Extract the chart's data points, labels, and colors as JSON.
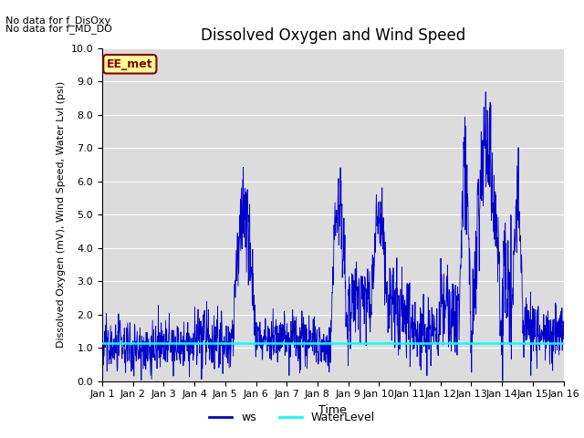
{
  "title": "Dissolved Oxygen and Wind Speed",
  "ylabel": "Dissolved Oxygen (mV), Wind Speed, Water Lvl (psi)",
  "xlabel": "Time",
  "ylim": [
    0.0,
    10.0
  ],
  "yticks": [
    0.0,
    1.0,
    2.0,
    3.0,
    4.0,
    5.0,
    6.0,
    7.0,
    8.0,
    9.0,
    10.0
  ],
  "water_level": 1.15,
  "ws_color": "#0000CC",
  "water_color": "cyan",
  "bg_color": "#DCDCDC",
  "annotation1": "No data for f_DisOxy",
  "annotation2": "No data for f_MD_DO",
  "station_label": "EE_met",
  "station_box_color": "#FFFF99",
  "station_box_edge": "#8B0000",
  "n_days": 15,
  "pts_per_day": 96,
  "x_tick_labels": [
    "Jan 1",
    "Jan 2",
    "Jan 3",
    "Jan 4",
    "Jan 5",
    "Jan 6",
    "Jan 7",
    "Jan 8",
    "Jan 9",
    "Jan 10",
    "Jan 11",
    "Jan 12",
    "Jan 13",
    "Jan 14",
    "Jan 15",
    "Jan 16"
  ],
  "seed": 42,
  "title_fontsize": 12,
  "ylabel_fontsize": 8,
  "xlabel_fontsize": 9,
  "tick_fontsize": 8,
  "annot_fontsize": 8,
  "legend_fontsize": 9
}
